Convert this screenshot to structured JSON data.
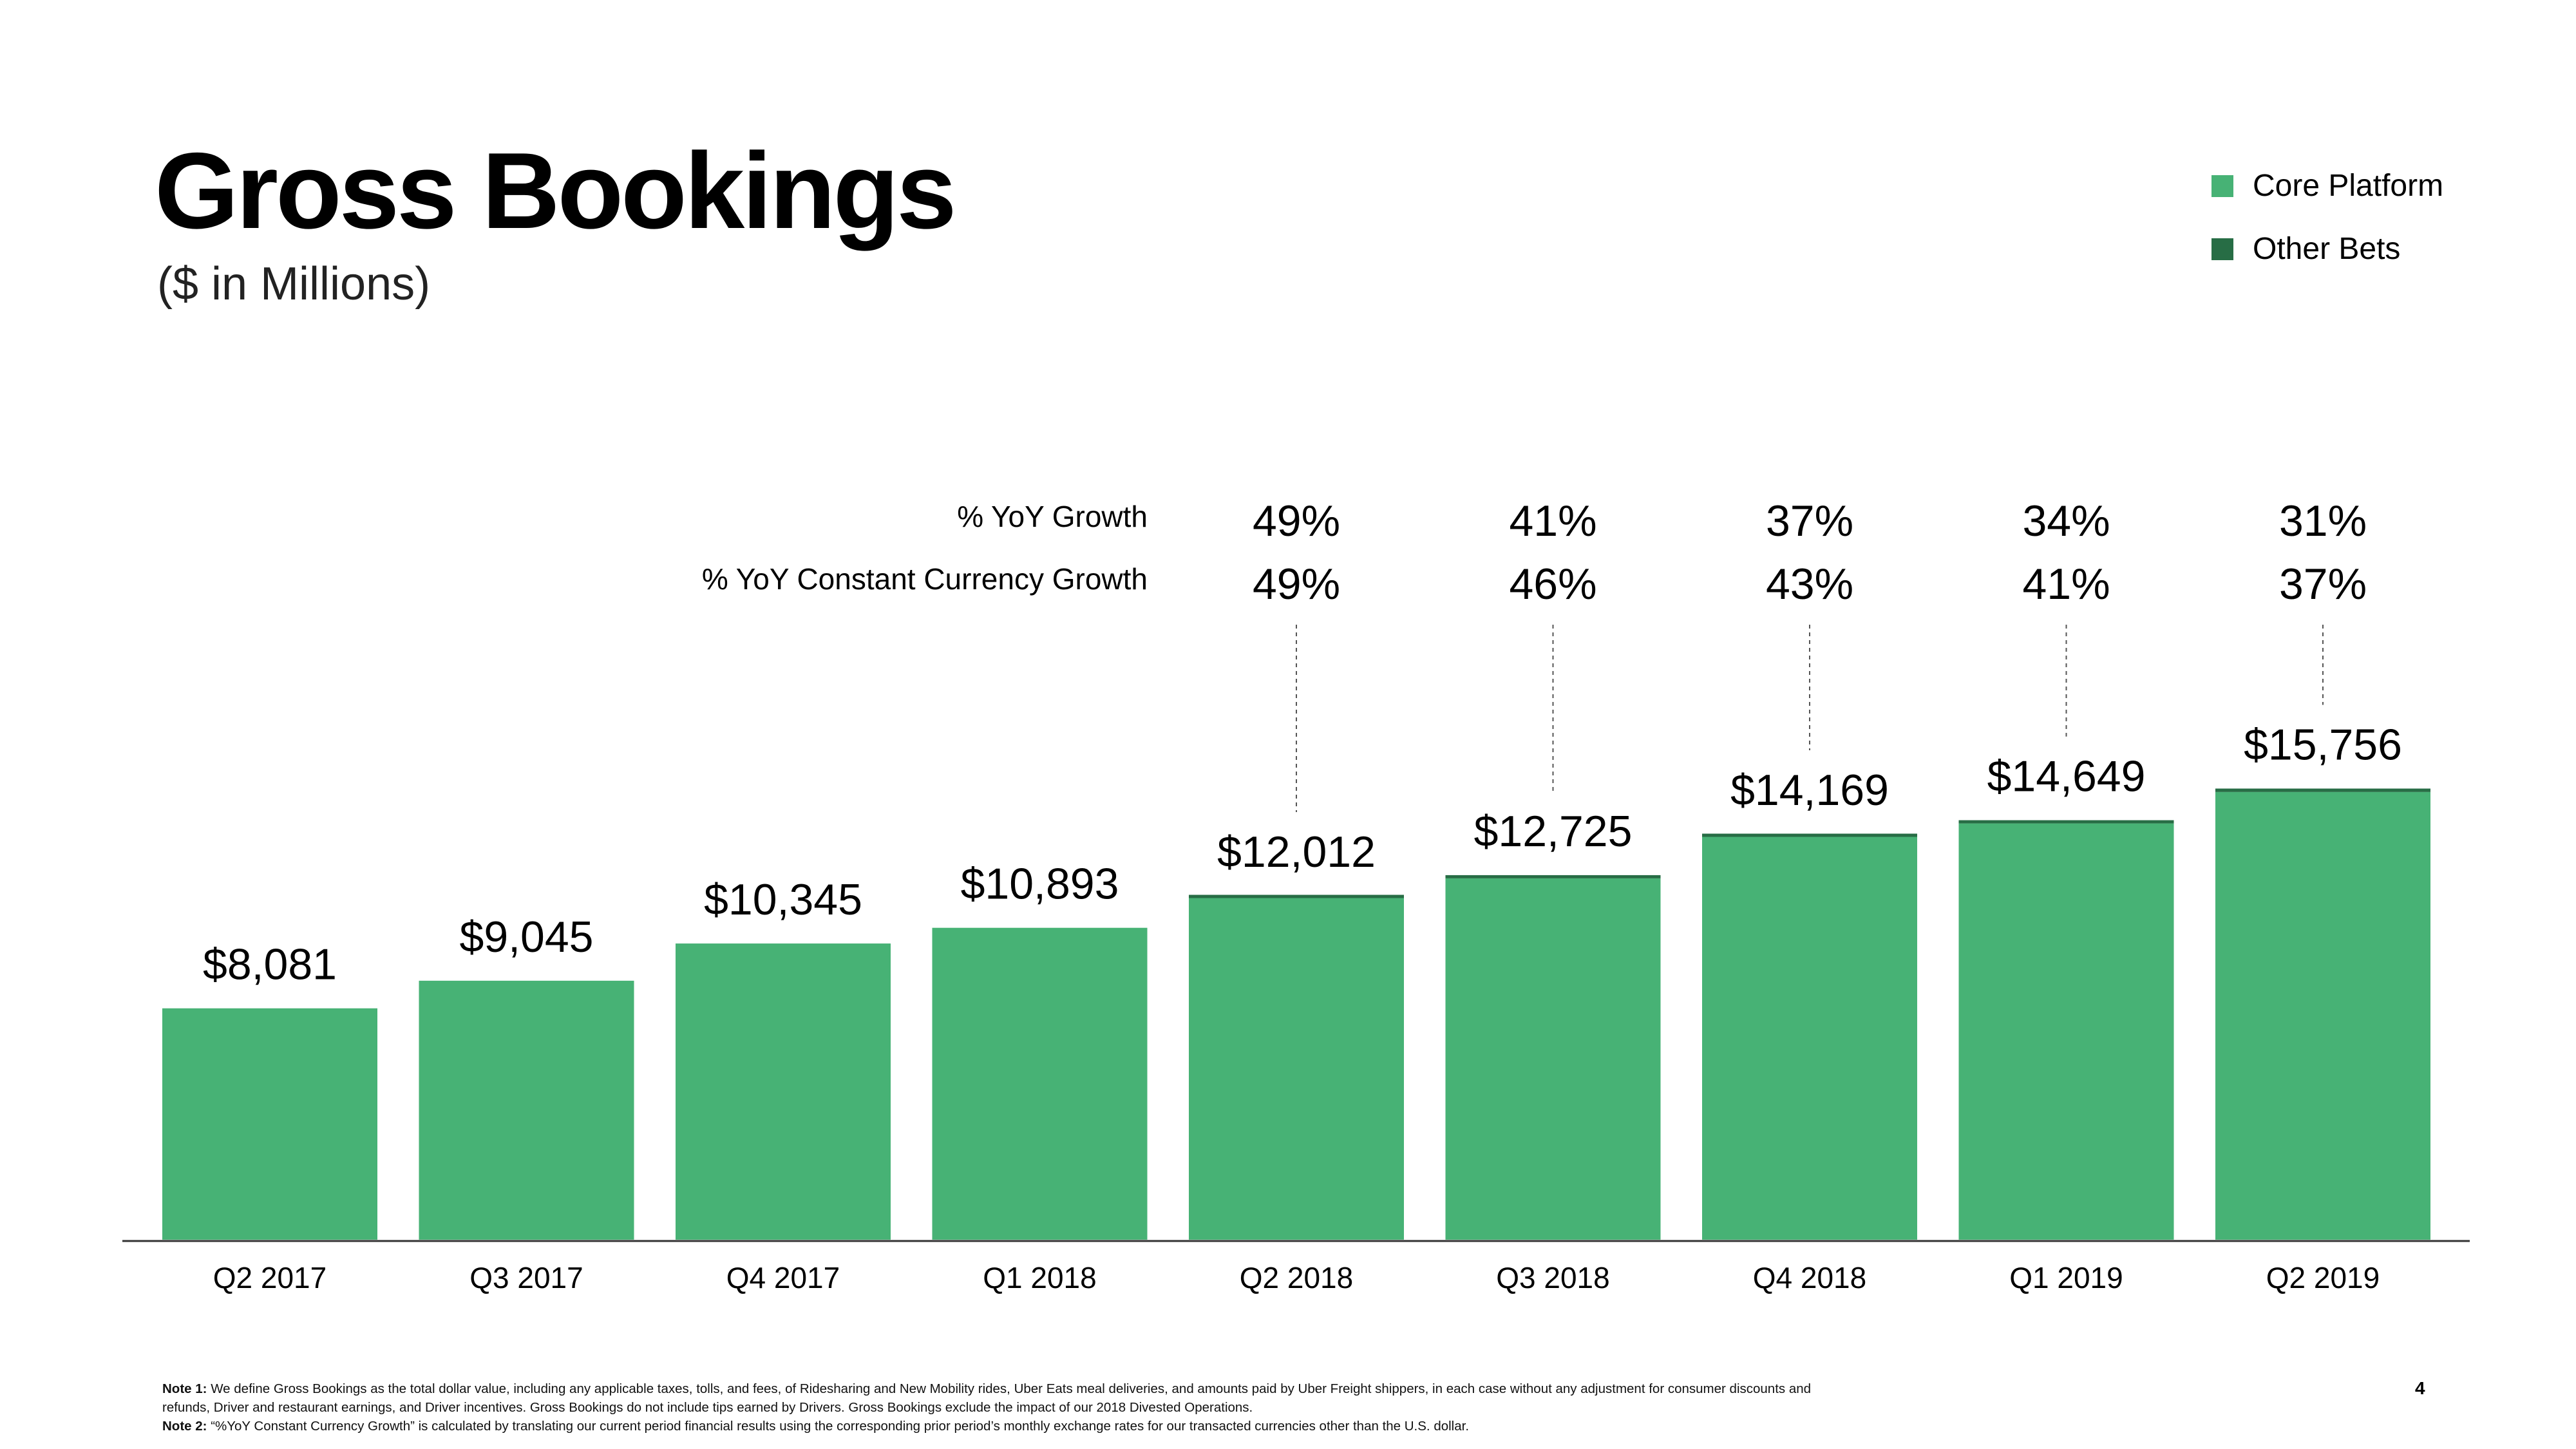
{
  "title": "Gross Bookings",
  "subtitle": "($ in Millions)",
  "legend": [
    {
      "label": "Core Platform",
      "color": "#47B275"
    },
    {
      "label": "Other Bets",
      "color": "#276D45"
    }
  ],
  "growth_row_labels": {
    "yoy": "% YoY Growth",
    "cc": "% YoY Constant Currency Growth"
  },
  "notes": {
    "note1_label": "Note 1:",
    "note1_text": "We define Gross Bookings as the total dollar value, including any applicable taxes, tolls, and fees, of Ridesharing and New Mobility rides, Uber Eats meal deliveries, and amounts paid by Uber Freight shippers, in each case without any adjustment for consumer discounts and refunds, Driver and restaurant earnings, and Driver incentives. Gross Bookings do not include tips earned by Drivers. Gross Bookings exclude the impact of our 2018 Divested Operations.",
    "note2_label": "Note 2:",
    "note2_text": "“%YoY Constant Currency Growth” is calculated by translating our current period financial results using the corresponding prior period’s monthly exchange rates for our transacted currencies other than the U.S. dollar."
  },
  "page_number": "4",
  "chart_data": {
    "type": "bar",
    "stacked": true,
    "title": "Gross Bookings",
    "ylabel": "$ in Millions",
    "ylim": [
      0,
      16000
    ],
    "categories": [
      "Q2 2017",
      "Q3 2017",
      "Q4 2017",
      "Q1 2018",
      "Q2 2018",
      "Q3 2018",
      "Q4 2018",
      "Q1 2019",
      "Q2 2019"
    ],
    "totals": [
      8081,
      9045,
      10345,
      10893,
      12012,
      12725,
      14169,
      14649,
      15756
    ],
    "total_labels": [
      "$8,081",
      "$9,045",
      "$10,345",
      "$10,893",
      "$12,012",
      "$12,725",
      "$14,169",
      "$14,649",
      "$15,756"
    ],
    "series": [
      {
        "name": "Core Platform",
        "color": "#47B275",
        "values": [
          8081,
          9045,
          10345,
          10893,
          11932,
          12620,
          14069,
          14539,
          15636
        ]
      },
      {
        "name": "Other Bets",
        "color": "#276D45",
        "values": [
          0,
          0,
          0,
          0,
          80,
          105,
          100,
          110,
          120
        ]
      }
    ],
    "yoy_growth": [
      "",
      "",
      "",
      "",
      "49%",
      "41%",
      "37%",
      "34%",
      "31%"
    ],
    "yoy_cc_growth": [
      "",
      "",
      "",
      "",
      "49%",
      "46%",
      "43%",
      "41%",
      "37%"
    ]
  }
}
